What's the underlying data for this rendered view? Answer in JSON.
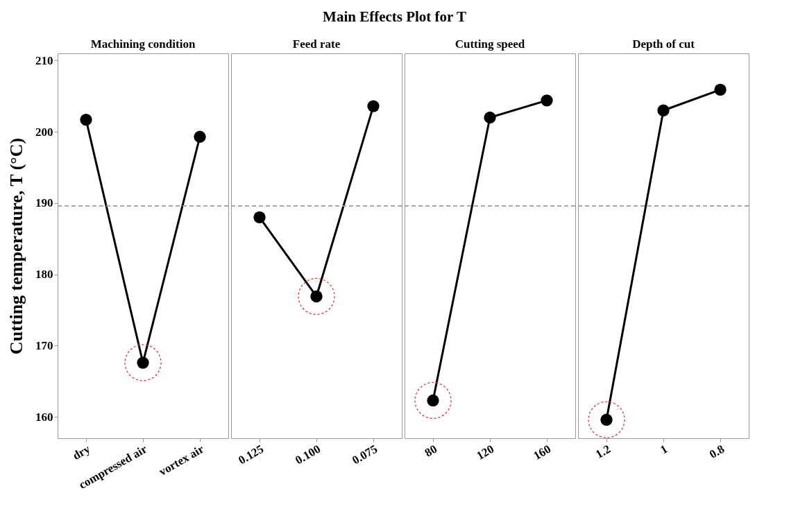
{
  "chart_data": [
    {
      "type": "other",
      "title": "Main Effects Plot for T"
    },
    {
      "type": "line",
      "subtitle": "Machining condition",
      "ylabel": "Cutting temperature, T (°C)",
      "categories": [
        "dry",
        "compressed air",
        "vortex air"
      ],
      "values": [
        201.7,
        167.6,
        199.3
      ],
      "color": "#000000",
      "marker": "circle",
      "line_style": "solid",
      "ylim": [
        157,
        211
      ],
      "yticks": [
        160,
        170,
        180,
        190,
        200,
        210
      ],
      "ref_lines": [
        {
          "axis": "y",
          "value": 189.6,
          "color": "#a0a0a0",
          "line_style": "dashed"
        }
      ]
    },
    {
      "type": "line",
      "subtitle": "Feed rate",
      "categories": [
        "0.125",
        "0.100",
        "0.075"
      ],
      "values": [
        188.0,
        176.9,
        203.6
      ],
      "color": "#000000",
      "marker": "circle",
      "line_style": "solid",
      "ylim": [
        157,
        211
      ],
      "tick_labels": "x",
      "ref_lines": [
        {
          "axis": "y",
          "value": 189.6,
          "color": "#a0a0a0",
          "line_style": "dashed"
        }
      ]
    },
    {
      "type": "line",
      "subtitle": "Cutting speed",
      "categories": [
        "80",
        "120",
        "160"
      ],
      "values": [
        162.3,
        202.0,
        204.4
      ],
      "color": "#000000",
      "marker": "circle",
      "line_style": "solid",
      "ylim": [
        157,
        211
      ],
      "tick_labels": "x",
      "ref_lines": [
        {
          "axis": "y",
          "value": 189.6,
          "color": "#a0a0a0",
          "line_style": "dashed"
        }
      ]
    },
    {
      "type": "line",
      "subtitle": "Depth of cut",
      "categories": [
        "1.2",
        "1",
        "0.8"
      ],
      "values": [
        159.6,
        203.0,
        205.9
      ],
      "color": "#000000",
      "marker": "circle",
      "line_style": "solid",
      "ylim": [
        157,
        211
      ],
      "tick_labels": "x",
      "ref_lines": [
        {
          "axis": "y",
          "value": 189.6,
          "color": "#a0a0a0",
          "line_style": "dashed"
        }
      ]
    }
  ]
}
